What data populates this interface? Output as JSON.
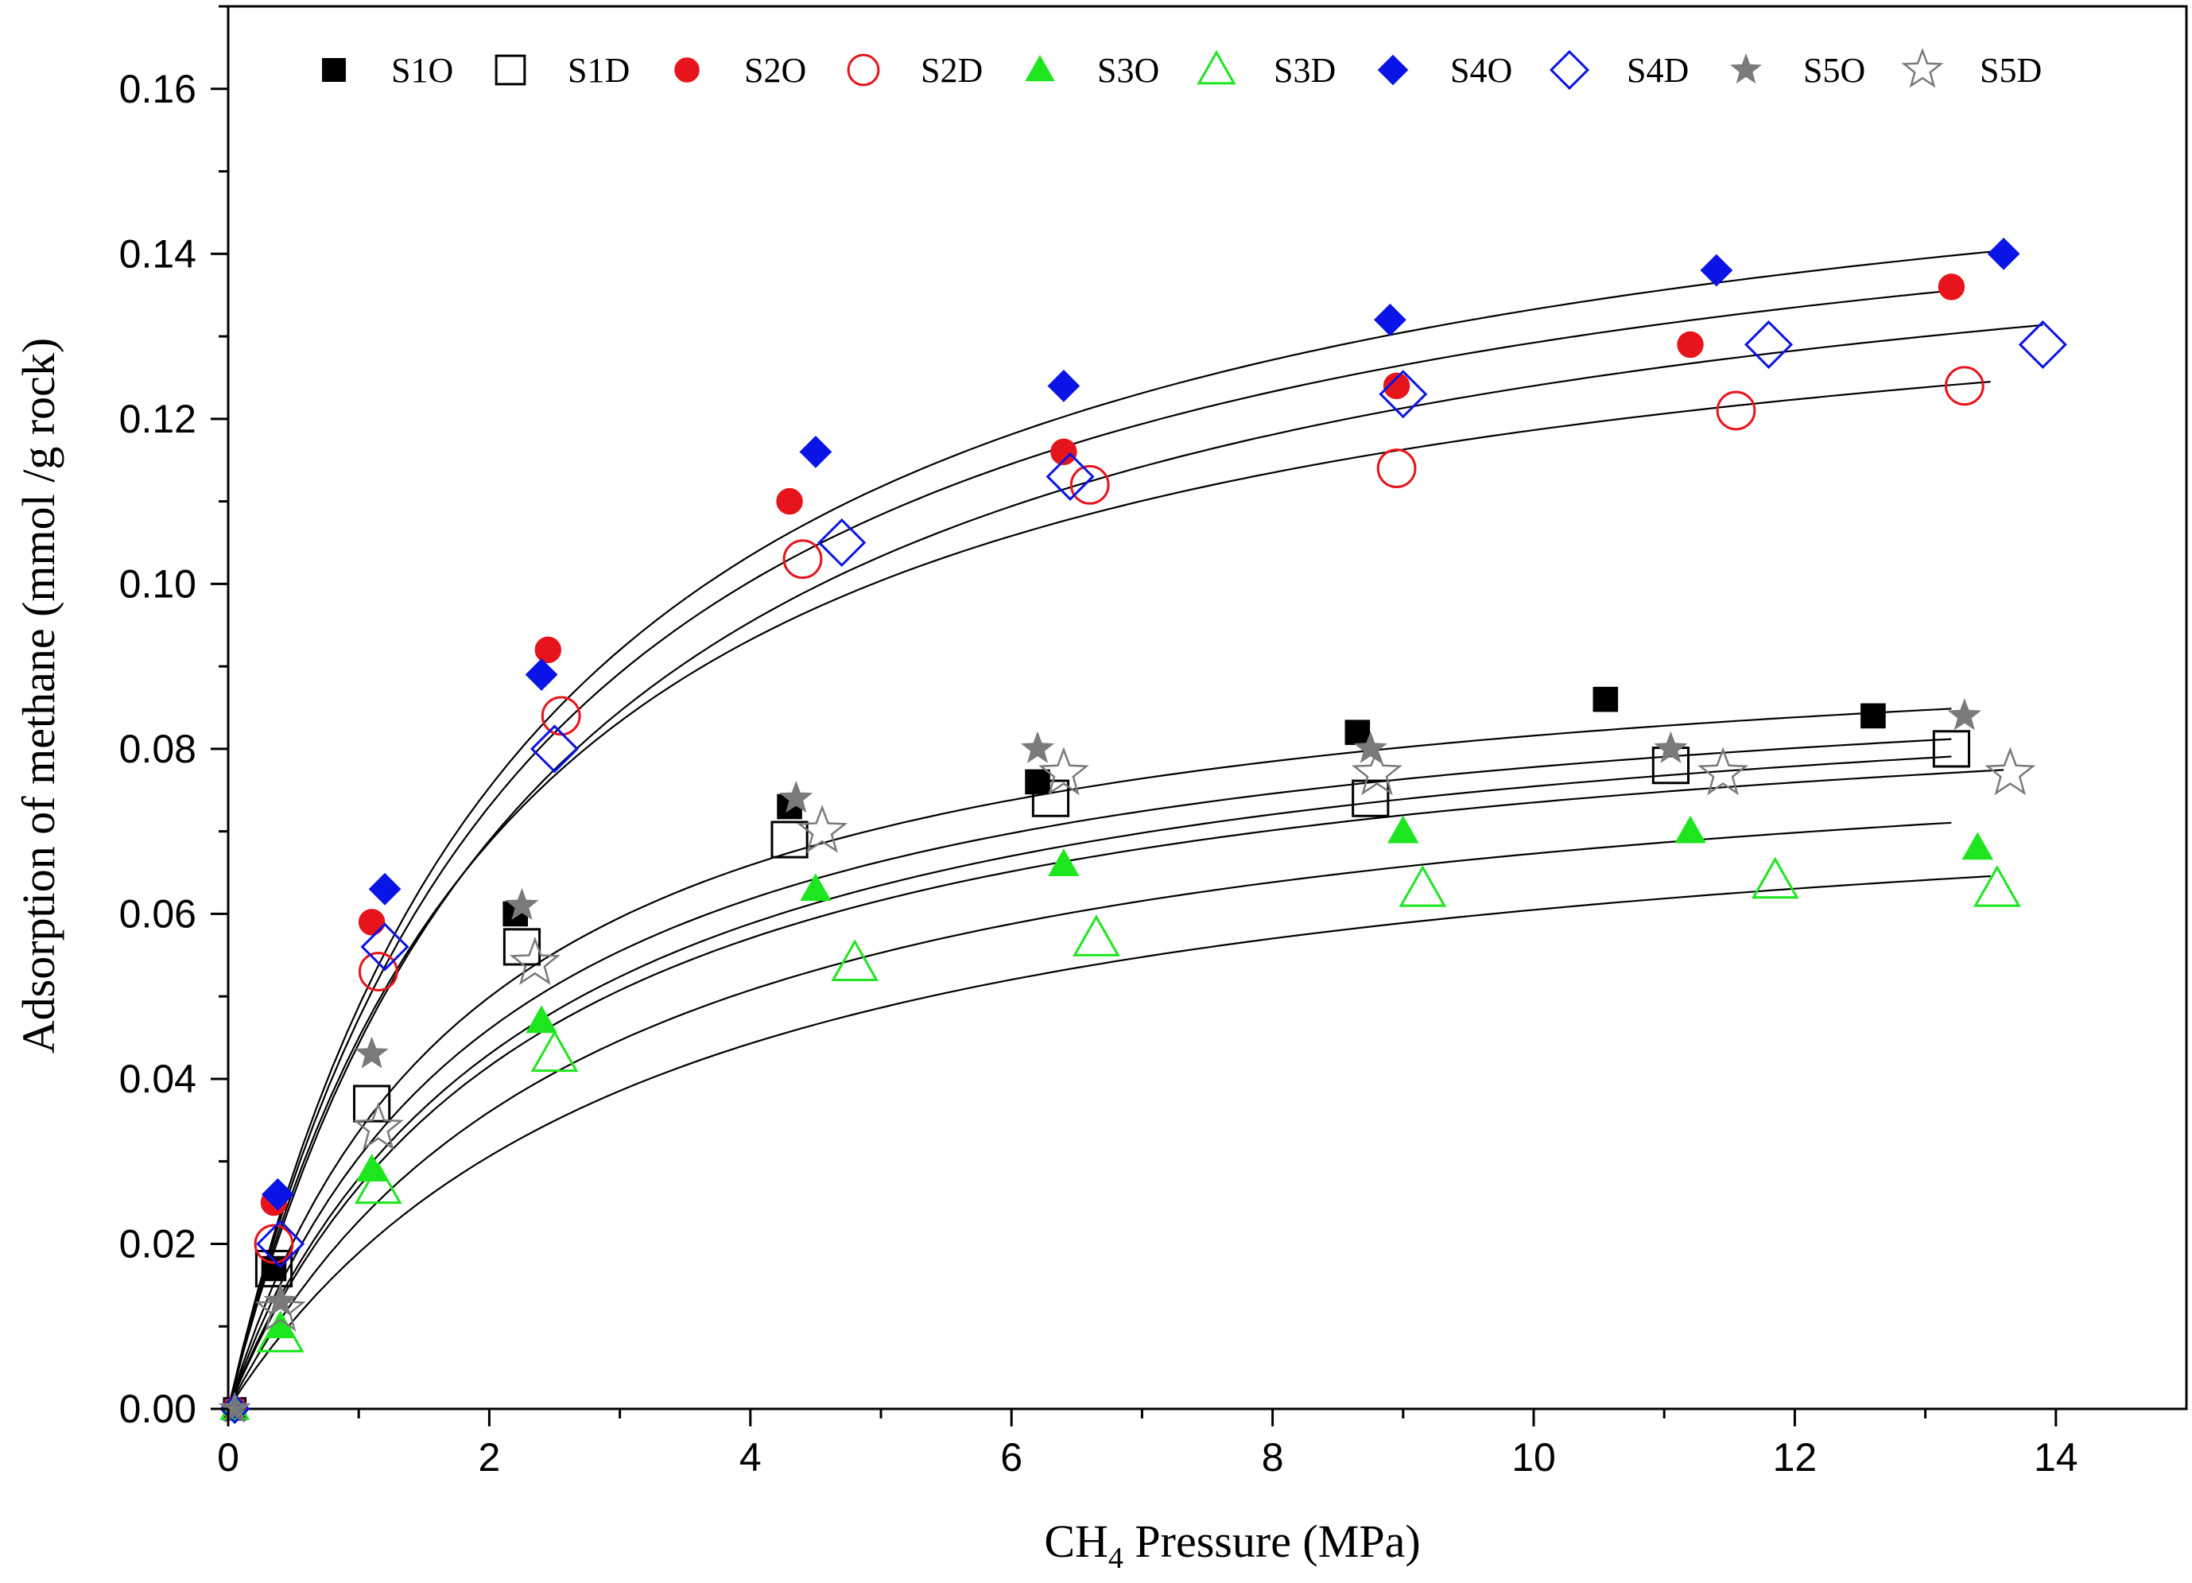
{
  "chart_data": {
    "type": "scatter",
    "title": "",
    "xlabel_main": "CH",
    "xlabel_sub": "4",
    "xlabel_rest": " Pressure (MPa)",
    "xlabel": "CH4 Pressure (MPa)",
    "ylabel": "Adsorption of methane (mmol /g rock)",
    "xlim": [
      0,
      15
    ],
    "ylim": [
      0,
      0.17
    ],
    "xticks": [
      0,
      2,
      4,
      6,
      8,
      10,
      12,
      14
    ],
    "xtick_labels": [
      "0",
      "2",
      "4",
      "6",
      "8",
      "10",
      "12",
      "14"
    ],
    "yticks": [
      0,
      0.02,
      0.04,
      0.06,
      0.08,
      0.1,
      0.12,
      0.14,
      0.16
    ],
    "ytick_labels": [
      "0.00",
      "0.02",
      "0.04",
      "0.06",
      "0.08",
      "0.10",
      "0.12",
      "0.14",
      "0.16"
    ],
    "legend_position": "top",
    "fit_curve_color": "#000000",
    "series": [
      {
        "name": "S1O",
        "marker": "square",
        "filled": true,
        "color": "#000000",
        "x": [
          0.35,
          2.2,
          4.3,
          6.2,
          8.65,
          10.55,
          12.6
        ],
        "y": [
          0.017,
          0.06,
          0.073,
          0.076,
          0.082,
          0.086,
          0.084
        ],
        "fit": {
          "qmax": 0.097,
          "b": 0.53,
          "xmax": 13.2
        }
      },
      {
        "name": "S1D",
        "marker": "square",
        "filled": false,
        "color": "#000000",
        "x": [
          0.35,
          1.1,
          2.25,
          4.3,
          6.3,
          8.75,
          11.05,
          13.2
        ],
        "y": [
          0.017,
          0.037,
          0.056,
          0.069,
          0.074,
          0.074,
          0.078,
          0.08
        ],
        "fit": {
          "qmax": 0.093,
          "b": 0.43,
          "xmax": 13.2
        }
      },
      {
        "name": "S2O",
        "marker": "circle",
        "filled": true,
        "color": "#e8141c",
        "x": [
          0.35,
          1.1,
          2.45,
          4.3,
          6.4,
          8.95,
          11.2,
          13.2
        ],
        "y": [
          0.025,
          0.059,
          0.092,
          0.11,
          0.116,
          0.124,
          0.129,
          0.136
        ],
        "fit": {
          "qmax": 0.16,
          "b": 0.42,
          "xmax": 13.2
        }
      },
      {
        "name": "S2D",
        "marker": "circle",
        "filled": false,
        "color": "#e8141c",
        "x": [
          0.35,
          1.15,
          2.55,
          4.4,
          6.6,
          8.95,
          11.55,
          13.3
        ],
        "y": [
          0.02,
          0.053,
          0.084,
          0.103,
          0.112,
          0.114,
          0.121,
          0.124
        ],
        "fit": {
          "qmax": 0.145,
          "b": 0.45,
          "xmax": 13.5
        }
      },
      {
        "name": "S3O",
        "marker": "triangle",
        "filled": true,
        "color": "#1ee61e",
        "x": [
          0.4,
          1.1,
          2.4,
          4.5,
          6.4,
          9.0,
          11.2,
          13.4
        ],
        "y": [
          0.01,
          0.029,
          0.047,
          0.063,
          0.066,
          0.07,
          0.07,
          0.068
        ],
        "fit": {
          "qmax": 0.086,
          "b": 0.36,
          "xmax": 13.2
        }
      },
      {
        "name": "S3D",
        "marker": "triangle",
        "filled": false,
        "color": "#1ee61e",
        "x": [
          0.4,
          1.15,
          2.5,
          4.8,
          6.65,
          9.15,
          11.85,
          13.55
        ],
        "y": [
          0.009,
          0.027,
          0.043,
          0.054,
          0.057,
          0.063,
          0.064,
          0.063
        ],
        "fit": {
          "qmax": 0.08,
          "b": 0.31,
          "xmax": 13.5
        }
      },
      {
        "name": "S4O",
        "marker": "diamond",
        "filled": true,
        "color": "#0a14e6",
        "x": [
          0.38,
          1.2,
          2.4,
          4.5,
          6.4,
          8.9,
          11.4,
          13.6
        ],
        "y": [
          0.026,
          0.063,
          0.089,
          0.116,
          0.124,
          0.132,
          0.138,
          0.14
        ],
        "fit": {
          "qmax": 0.165,
          "b": 0.42,
          "xmax": 13.6
        }
      },
      {
        "name": "S4D",
        "marker": "diamond",
        "filled": false,
        "color": "#0a14e6",
        "x": [
          0.4,
          1.2,
          2.5,
          4.7,
          6.45,
          9.0,
          11.8,
          13.9
        ],
        "y": [
          0.02,
          0.056,
          0.08,
          0.105,
          0.113,
          0.123,
          0.129,
          0.129
        ],
        "fit": {
          "qmax": 0.155,
          "b": 0.4,
          "xmax": 13.9
        }
      },
      {
        "name": "S5O",
        "marker": "star",
        "filled": true,
        "color": "#7a7a7a",
        "x": [
          0.4,
          1.1,
          2.25,
          4.35,
          6.2,
          8.75,
          11.05,
          13.3
        ],
        "y": [
          0.013,
          0.043,
          0.061,
          0.074,
          0.08,
          0.08,
          0.08,
          0.084
        ],
        "fit": {
          "qmax": 0.094,
          "b": 0.48,
          "xmax": 13.2
        }
      },
      {
        "name": "S5D",
        "marker": "star",
        "filled": false,
        "color": "#7a7a7a",
        "x": [
          0.4,
          1.15,
          2.35,
          4.55,
          6.4,
          8.8,
          11.45,
          13.65
        ],
        "y": [
          0.012,
          0.034,
          0.054,
          0.07,
          0.077,
          0.077,
          0.077,
          0.077
        ],
        "fit": {
          "qmax": 0.091,
          "b": 0.42,
          "xmax": 13.6
        }
      }
    ]
  }
}
